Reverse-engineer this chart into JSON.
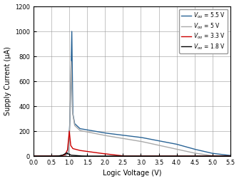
{
  "title": "",
  "xlabel": "Logic Voltage (V)",
  "ylabel": "Supply Current (μA)",
  "xlim": [
    0,
    5.5
  ],
  "ylim": [
    0,
    1200
  ],
  "xticks": [
    0,
    0.5,
    1.0,
    1.5,
    2.0,
    2.5,
    3.0,
    3.5,
    4.0,
    4.5,
    5.0,
    5.5
  ],
  "yticks": [
    0,
    200,
    400,
    600,
    800,
    1000,
    1200
  ],
  "legend": [
    {
      "label": "V_{oo} = 5.5 V",
      "color": "#2a6496"
    },
    {
      "label": "V_{oo} = 5 V",
      "color": "#aaaaaa"
    },
    {
      "label": "V_{oo} = 3.3 V",
      "color": "#cc0000"
    },
    {
      "label": "V_{oo} = 1.8 V",
      "color": "#000000"
    }
  ],
  "background_color": "#ffffff",
  "fig_width": 3.35,
  "fig_height": 2.54,
  "dpi": 100
}
